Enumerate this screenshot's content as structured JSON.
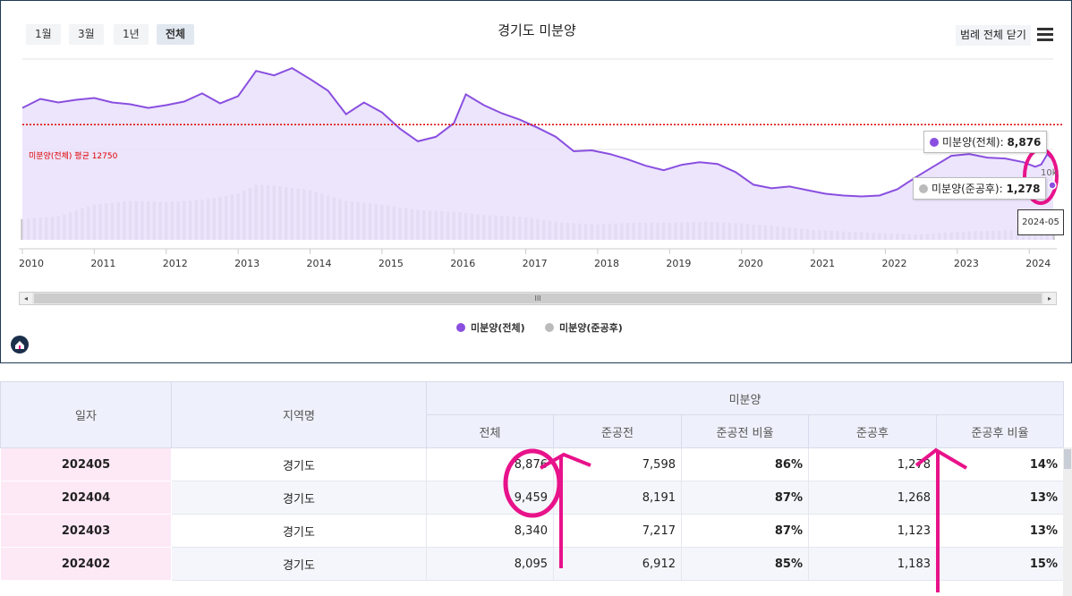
{
  "chart": {
    "title": "경기도 미분양",
    "period_buttons": [
      {
        "label": "1월",
        "active": false
      },
      {
        "label": "3월",
        "active": false
      },
      {
        "label": "1년",
        "active": false
      },
      {
        "label": "전체",
        "active": true
      }
    ],
    "legend_close_label": "범례 전체 닫기",
    "menu_icon": "hamburger-icon",
    "avg_label": "미분양(전체) 평균 12750",
    "y_tick_label": "10k",
    "tooltip_total": {
      "name": "미분양(전체)",
      "value": "8,876"
    },
    "tooltip_after": {
      "name": "미분양(준공후)",
      "value": "1,278"
    },
    "date_tooltip": "2024-05",
    "legend": [
      {
        "label": "미분양(전체)",
        "color": "#8a4fe0"
      },
      {
        "label": "미분양(준공후)",
        "color": "#bbbbbb"
      }
    ],
    "scroll_thumb_glyph": "III",
    "scroll_left_glyph": "◂",
    "scroll_right_glyph": "▸",
    "colors": {
      "line": "#8a4fe0",
      "area": "#e9e0fb",
      "bar": "#c2c2c2",
      "avg": "#e00000",
      "highlight": "#e8128a"
    }
  },
  "chart_data": {
    "type": "line",
    "title": "경기도 미분양",
    "x_ticks": [
      "2010",
      "2011",
      "2012",
      "2013",
      "2014",
      "2015",
      "2016",
      "2017",
      "2018",
      "2019",
      "2020",
      "2021",
      "2022",
      "2023",
      "2024"
    ],
    "x_range": [
      "2010-01",
      "2024-05"
    ],
    "average": 12750,
    "series": [
      {
        "name": "미분양(전체)",
        "kind": "area",
        "points": [
          [
            "2010-01",
            14600
          ],
          [
            "2010-04",
            15600
          ],
          [
            "2010-07",
            15200
          ],
          [
            "2010-10",
            15500
          ],
          [
            "2011-01",
            15700
          ],
          [
            "2011-04",
            15200
          ],
          [
            "2011-07",
            15000
          ],
          [
            "2011-10",
            14600
          ],
          [
            "2012-01",
            14900
          ],
          [
            "2012-04",
            15300
          ],
          [
            "2012-07",
            16200
          ],
          [
            "2012-10",
            15100
          ],
          [
            "2013-01",
            15900
          ],
          [
            "2013-04",
            18700
          ],
          [
            "2013-07",
            18200
          ],
          [
            "2013-10",
            19000
          ],
          [
            "2014-01",
            17800
          ],
          [
            "2014-04",
            16500
          ],
          [
            "2014-07",
            13900
          ],
          [
            "2014-10",
            15200
          ],
          [
            "2015-01",
            14100
          ],
          [
            "2015-04",
            12300
          ],
          [
            "2015-07",
            10900
          ],
          [
            "2015-10",
            11400
          ],
          [
            "2016-01",
            12900
          ],
          [
            "2016-03",
            16100
          ],
          [
            "2016-06",
            14900
          ],
          [
            "2016-09",
            14000
          ],
          [
            "2016-12",
            13300
          ],
          [
            "2017-03",
            12400
          ],
          [
            "2017-06",
            11400
          ],
          [
            "2017-09",
            9800
          ],
          [
            "2017-12",
            9900
          ],
          [
            "2018-03",
            9500
          ],
          [
            "2018-06",
            8900
          ],
          [
            "2018-09",
            8200
          ],
          [
            "2018-12",
            7700
          ],
          [
            "2019-03",
            8300
          ],
          [
            "2019-06",
            8600
          ],
          [
            "2019-09",
            8400
          ],
          [
            "2019-12",
            7500
          ],
          [
            "2020-03",
            6100
          ],
          [
            "2020-06",
            5700
          ],
          [
            "2020-09",
            5900
          ],
          [
            "2020-12",
            5500
          ],
          [
            "2021-03",
            5100
          ],
          [
            "2021-06",
            4900
          ],
          [
            "2021-09",
            4800
          ],
          [
            "2021-12",
            4900
          ],
          [
            "2022-03",
            5600
          ],
          [
            "2022-06",
            6900
          ],
          [
            "2022-09",
            8100
          ],
          [
            "2022-12",
            9300
          ],
          [
            "2023-03",
            9500
          ],
          [
            "2023-06",
            9100
          ],
          [
            "2023-09",
            9000
          ],
          [
            "2023-12",
            8600
          ],
          [
            "2024-02",
            8095
          ],
          [
            "2024-03",
            8340
          ],
          [
            "2024-04",
            9459
          ],
          [
            "2024-05",
            8876
          ]
        ]
      },
      {
        "name": "미분양(준공후)",
        "kind": "bar",
        "points": [
          [
            "2010-01",
            2300
          ],
          [
            "2010-07",
            2600
          ],
          [
            "2011-01",
            3900
          ],
          [
            "2011-07",
            4300
          ],
          [
            "2012-01",
            4200
          ],
          [
            "2012-07",
            4400
          ],
          [
            "2013-01",
            5100
          ],
          [
            "2013-04",
            6100
          ],
          [
            "2013-07",
            6000
          ],
          [
            "2014-01",
            5500
          ],
          [
            "2014-07",
            4300
          ],
          [
            "2015-01",
            3900
          ],
          [
            "2015-07",
            3300
          ],
          [
            "2016-01",
            3100
          ],
          [
            "2016-07",
            2700
          ],
          [
            "2017-01",
            2500
          ],
          [
            "2017-07",
            1900
          ],
          [
            "2018-01",
            1700
          ],
          [
            "2018-07",
            1900
          ],
          [
            "2019-01",
            1900
          ],
          [
            "2019-07",
            2000
          ],
          [
            "2020-01",
            1800
          ],
          [
            "2020-07",
            1500
          ],
          [
            "2021-01",
            1100
          ],
          [
            "2021-07",
            900
          ],
          [
            "2022-01",
            700
          ],
          [
            "2022-07",
            600
          ],
          [
            "2023-01",
            900
          ],
          [
            "2023-07",
            1000
          ],
          [
            "2024-01",
            1183
          ],
          [
            "2024-05",
            1278
          ]
        ]
      }
    ],
    "y_ticks": [
      "10k"
    ],
    "grid": true,
    "legend_position": "bottom"
  },
  "table": {
    "headers": {
      "date": "일자",
      "region": "지역명",
      "group": "미분양",
      "total": "전체",
      "before": "준공전",
      "before_ratio": "준공전 비율",
      "after": "준공후",
      "after_ratio": "준공후 비율"
    },
    "rows": [
      {
        "date": "202405",
        "region": "경기도",
        "total": "8,876",
        "before": "7,598",
        "before_ratio": "86%",
        "after": "1,278",
        "after_ratio": "14%"
      },
      {
        "date": "202404",
        "region": "경기도",
        "total": "9,459",
        "before": "8,191",
        "before_ratio": "87%",
        "after": "1,268",
        "after_ratio": "13%"
      },
      {
        "date": "202403",
        "region": "경기도",
        "total": "8,340",
        "before": "7,217",
        "before_ratio": "87%",
        "after": "1,123",
        "after_ratio": "13%"
      },
      {
        "date": "202402",
        "region": "경기도",
        "total": "8,095",
        "before": "6,912",
        "before_ratio": "85%",
        "after": "1,183",
        "after_ratio": "15%"
      }
    ]
  }
}
